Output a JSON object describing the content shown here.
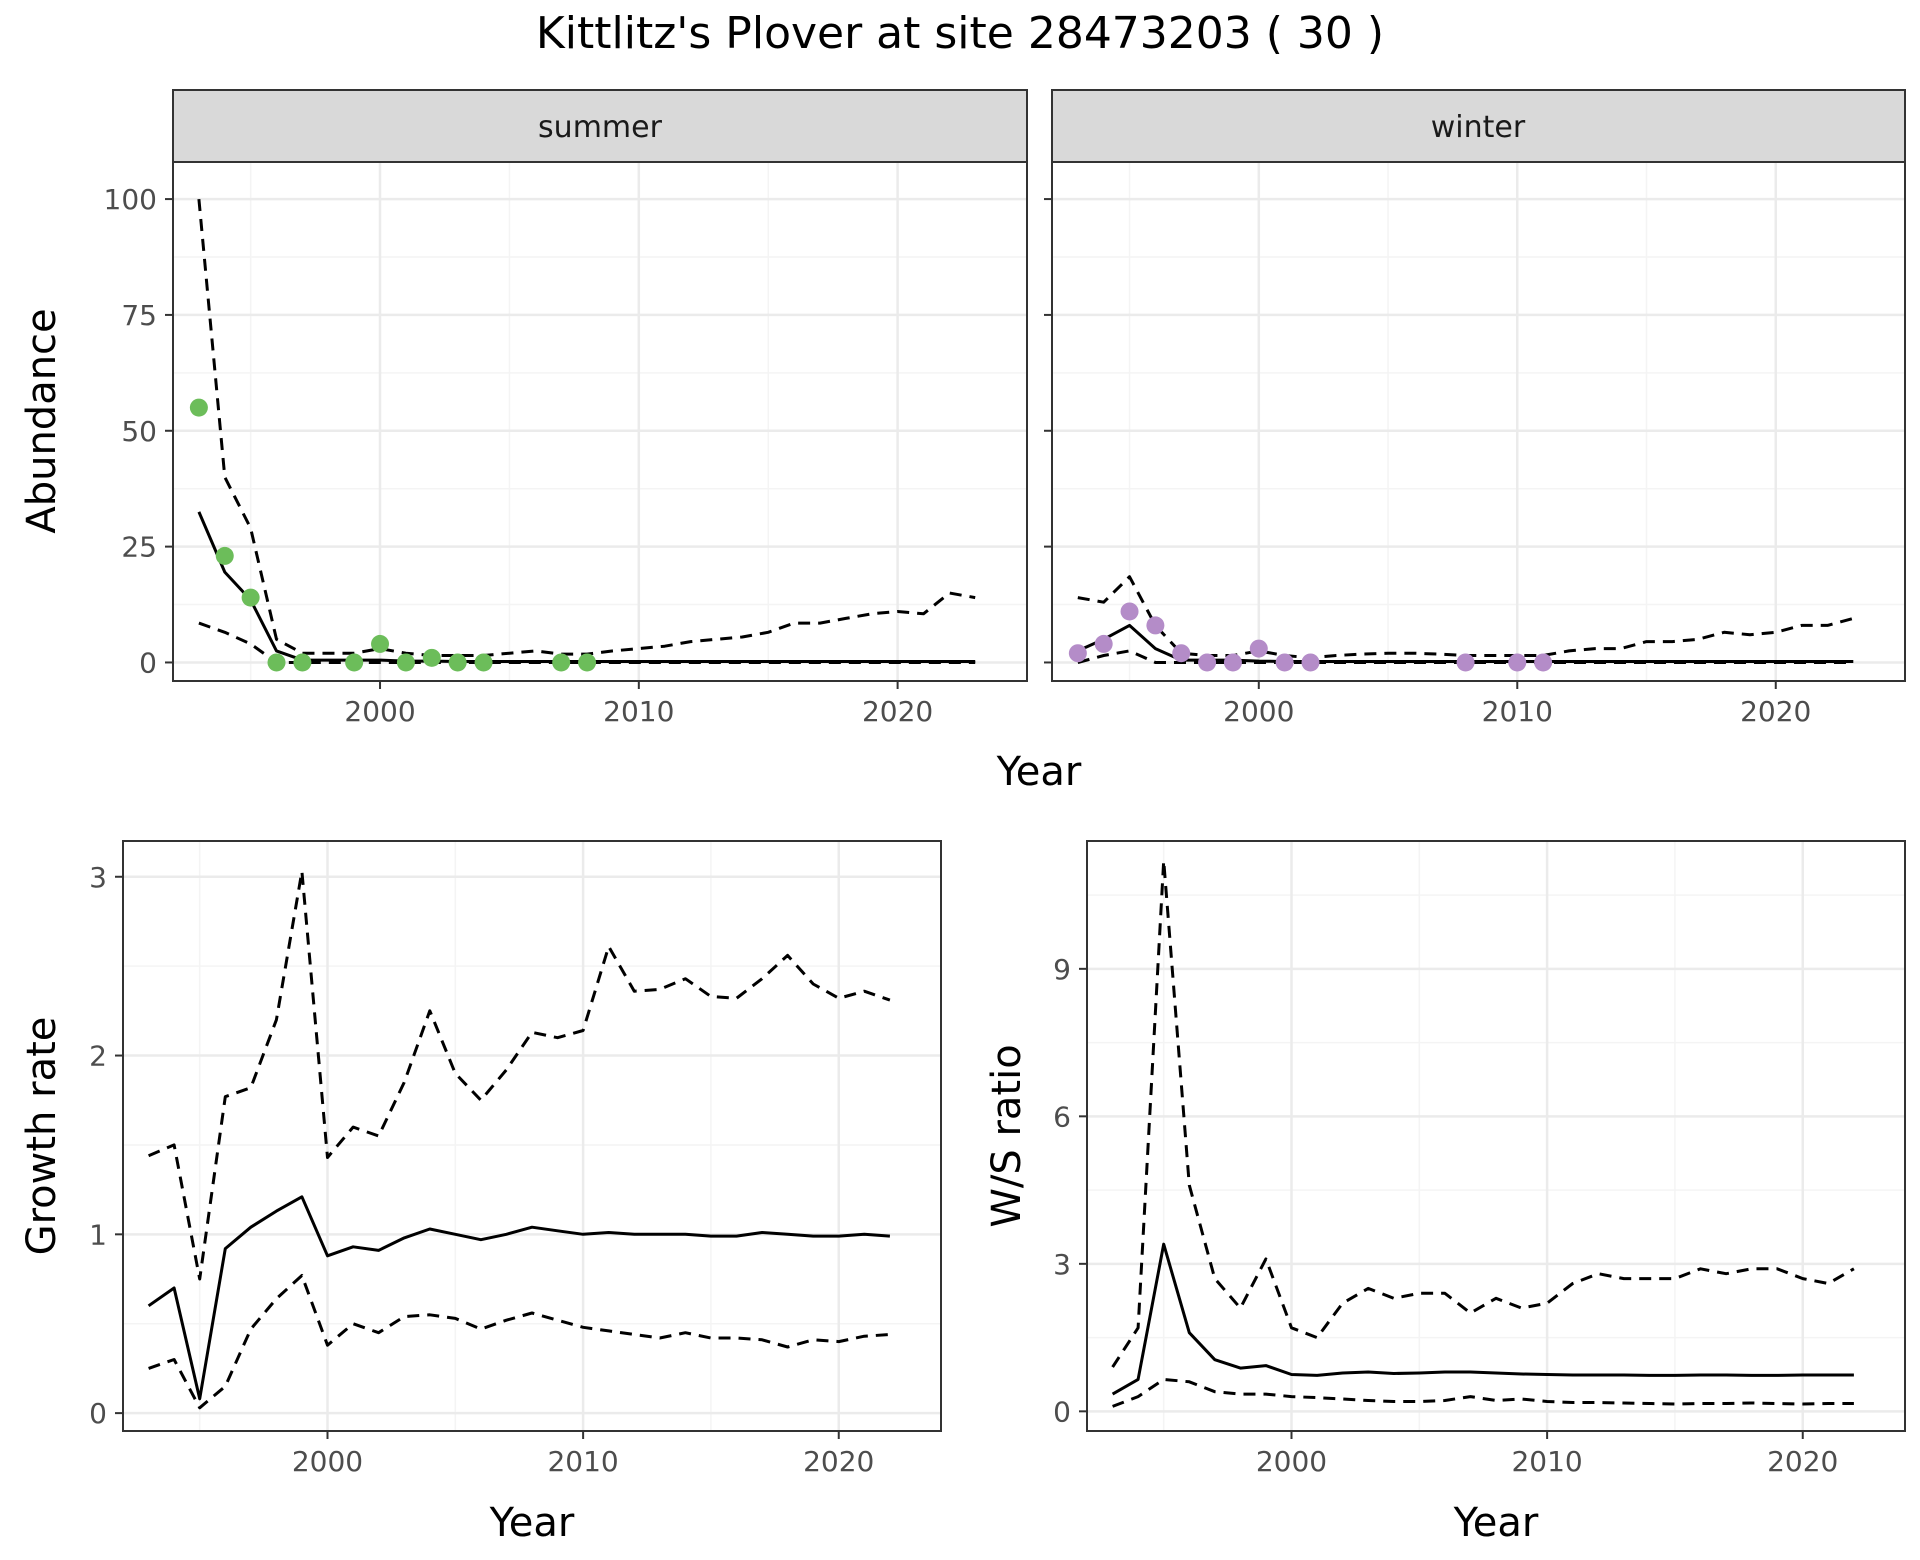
{
  "title": "Kittlitz's Plover at site 28473203 ( 30 )",
  "colors": {
    "summer_points": "#6cbd5a",
    "winter_points": "#b48cc8",
    "line": "#000000",
    "strip_fill": "#d9d9d9",
    "grid_major": "#ebebeb",
    "grid_minor": "#f4f4f4"
  },
  "chart_data": [
    {
      "type": "line",
      "panel": "summer",
      "strip": "summer",
      "xlabel": "",
      "ylabel": "Abundance",
      "xlim": [
        1992,
        2025
      ],
      "ylim": [
        -4,
        108
      ],
      "x_ticks": [
        2000,
        2010,
        2020
      ],
      "y_ticks": [
        0,
        25,
        50,
        75,
        100
      ],
      "grid": true,
      "x": [
        1993,
        1994,
        1995,
        1996,
        1997,
        1998,
        1999,
        2000,
        2001,
        2002,
        2003,
        2004,
        2005,
        2006,
        2007,
        2008,
        2009,
        2010,
        2011,
        2012,
        2013,
        2014,
        2015,
        2016,
        2017,
        2018,
        2019,
        2020,
        2021,
        2022,
        2023
      ],
      "series": [
        {
          "role": "estimate",
          "style": "solid",
          "values": [
            32.5,
            19.5,
            13.5,
            2.5,
            0.5,
            0.5,
            0.5,
            0.5,
            0.3,
            0.3,
            0.2,
            0.2,
            0.2,
            0.2,
            0.2,
            0.2,
            0.2,
            0.2,
            0.2,
            0.2,
            0.2,
            0.2,
            0.2,
            0.2,
            0.2,
            0.2,
            0.2,
            0.2,
            0.2,
            0.2,
            0.2
          ]
        },
        {
          "role": "upper",
          "style": "dashed",
          "values": [
            100,
            40,
            29,
            5,
            2,
            2,
            2,
            3,
            2,
            1.5,
            1.5,
            1.5,
            2,
            2.5,
            1.8,
            1.8,
            2.5,
            3,
            3.5,
            4.5,
            5,
            5.5,
            6.5,
            8.5,
            8.5,
            9.5,
            10.5,
            11,
            10.5,
            15,
            14
          ]
        },
        {
          "role": "lower",
          "style": "dashed",
          "values": [
            8.5,
            6.5,
            4,
            0,
            0,
            0,
            0,
            0,
            0,
            0,
            0,
            0,
            0,
            0,
            0,
            0,
            0,
            0,
            0,
            0,
            0,
            0,
            0,
            0,
            0,
            0,
            0,
            0,
            0,
            0,
            0
          ]
        }
      ],
      "points": {
        "x": [
          1993,
          1994,
          1995,
          1996,
          1997,
          1999,
          2000,
          2001,
          2002,
          2003,
          2004,
          2007,
          2008
        ],
        "y": [
          55,
          23,
          14,
          0,
          0,
          0,
          4,
          0,
          1,
          0,
          0,
          0,
          0
        ]
      }
    },
    {
      "type": "line",
      "panel": "winter",
      "strip": "winter",
      "xlabel": "",
      "ylabel": "",
      "xlim": [
        1992,
        2025
      ],
      "ylim": [
        -4,
        108
      ],
      "x_ticks": [
        2000,
        2010,
        2020
      ],
      "y_ticks": [
        0,
        25,
        50,
        75,
        100
      ],
      "grid": true,
      "x": [
        1993,
        1994,
        1995,
        1996,
        1997,
        1998,
        1999,
        2000,
        2001,
        2002,
        2003,
        2004,
        2005,
        2006,
        2007,
        2008,
        2009,
        2010,
        2011,
        2012,
        2013,
        2014,
        2015,
        2016,
        2017,
        2018,
        2019,
        2020,
        2021,
        2022,
        2023
      ],
      "series": [
        {
          "role": "estimate",
          "style": "solid",
          "values": [
            2.5,
            5,
            8,
            3,
            0.5,
            0.5,
            0.5,
            0.3,
            0.2,
            0.2,
            0.2,
            0.2,
            0.2,
            0.2,
            0.2,
            0.2,
            0.2,
            0.2,
            0.2,
            0.2,
            0.2,
            0.2,
            0.2,
            0.2,
            0.2,
            0.2,
            0.2,
            0.2,
            0.2,
            0.2,
            0.2
          ]
        },
        {
          "role": "upper",
          "style": "dashed",
          "values": [
            14,
            13,
            18.5,
            8,
            2,
            1.5,
            1.5,
            2.5,
            1.5,
            1,
            1.5,
            1.8,
            2,
            2,
            1.8,
            1.5,
            1.5,
            1.5,
            1.5,
            2.5,
            3,
            3,
            4.5,
            4.5,
            5,
            6.5,
            6,
            6.5,
            8,
            8,
            9.5
          ]
        },
        {
          "role": "lower",
          "style": "dashed",
          "values": [
            0,
            1.5,
            2.5,
            0,
            0,
            0,
            0,
            0,
            0,
            0,
            0,
            0,
            0,
            0,
            0,
            0,
            0,
            0,
            0,
            0,
            0,
            0,
            0,
            0,
            0,
            0,
            0,
            0,
            0,
            0,
            0
          ]
        }
      ],
      "points": {
        "x": [
          1993,
          1994,
          1995,
          1996,
          1997,
          1998,
          1999,
          2000,
          2001,
          2002,
          2008,
          2010,
          2011
        ],
        "y": [
          2,
          4,
          11,
          8,
          2,
          0,
          0,
          3,
          0,
          0,
          0,
          0,
          0
        ]
      }
    },
    {
      "type": "line",
      "panel": "growth",
      "xlabel": "Year",
      "ylabel": "Growth rate",
      "xlim": [
        1992,
        2024
      ],
      "ylim": [
        -0.1,
        3.2
      ],
      "x_ticks": [
        2000,
        2010,
        2020
      ],
      "y_ticks": [
        0,
        1,
        2,
        3
      ],
      "grid": true,
      "x": [
        1993,
        1994,
        1995,
        1996,
        1997,
        1998,
        1999,
        2000,
        2001,
        2002,
        2003,
        2004,
        2005,
        2006,
        2007,
        2008,
        2009,
        2010,
        2011,
        2012,
        2013,
        2014,
        2015,
        2016,
        2017,
        2018,
        2019,
        2020,
        2021,
        2022
      ],
      "series": [
        {
          "role": "estimate",
          "style": "solid",
          "values": [
            0.6,
            0.7,
            0.08,
            0.92,
            1.04,
            1.13,
            1.21,
            0.88,
            0.93,
            0.91,
            0.98,
            1.03,
            1.0,
            0.97,
            1.0,
            1.04,
            1.02,
            1.0,
            1.01,
            1.0,
            1.0,
            1.0,
            0.99,
            0.99,
            1.01,
            1.0,
            0.99,
            0.99,
            1.0,
            0.99
          ]
        },
        {
          "role": "upper",
          "style": "dashed",
          "values": [
            1.44,
            1.5,
            0.75,
            1.77,
            1.82,
            2.2,
            3.03,
            1.43,
            1.6,
            1.55,
            1.85,
            2.25,
            1.9,
            1.75,
            1.92,
            2.13,
            2.1,
            2.14,
            2.61,
            2.36,
            2.37,
            2.43,
            2.33,
            2.32,
            2.43,
            2.56,
            2.4,
            2.32,
            2.36,
            2.31
          ]
        },
        {
          "role": "lower",
          "style": "dashed",
          "values": [
            0.25,
            0.3,
            0.03,
            0.15,
            0.47,
            0.64,
            0.77,
            0.38,
            0.5,
            0.45,
            0.54,
            0.55,
            0.53,
            0.47,
            0.52,
            0.56,
            0.52,
            0.48,
            0.46,
            0.44,
            0.42,
            0.45,
            0.42,
            0.42,
            0.41,
            0.37,
            0.41,
            0.4,
            0.43,
            0.44
          ]
        }
      ]
    },
    {
      "type": "line",
      "panel": "ratio",
      "xlabel": "Year",
      "ylabel": "W/S ratio",
      "xlim": [
        1992,
        2024
      ],
      "ylim": [
        -0.4,
        11.6
      ],
      "x_ticks": [
        2000,
        2010,
        2020
      ],
      "y_ticks": [
        0,
        3,
        6,
        9
      ],
      "grid": true,
      "x": [
        1993,
        1994,
        1995,
        1996,
        1997,
        1998,
        1999,
        2000,
        2001,
        2002,
        2003,
        2004,
        2005,
        2006,
        2007,
        2008,
        2009,
        2010,
        2011,
        2012,
        2013,
        2014,
        2015,
        2016,
        2017,
        2018,
        2019,
        2020,
        2021,
        2022
      ],
      "series": [
        {
          "role": "estimate",
          "style": "solid",
          "values": [
            0.35,
            0.65,
            3.4,
            1.6,
            1.05,
            0.88,
            0.93,
            0.75,
            0.73,
            0.78,
            0.8,
            0.77,
            0.78,
            0.8,
            0.8,
            0.78,
            0.76,
            0.75,
            0.74,
            0.74,
            0.74,
            0.73,
            0.73,
            0.74,
            0.74,
            0.73,
            0.73,
            0.74,
            0.74,
            0.74
          ]
        },
        {
          "role": "upper",
          "style": "dashed",
          "values": [
            0.9,
            1.7,
            11.2,
            4.6,
            2.7,
            2.1,
            3.1,
            1.7,
            1.5,
            2.2,
            2.5,
            2.3,
            2.4,
            2.4,
            2.0,
            2.3,
            2.1,
            2.2,
            2.6,
            2.8,
            2.7,
            2.7,
            2.7,
            2.9,
            2.8,
            2.9,
            2.9,
            2.7,
            2.6,
            2.9
          ]
        },
        {
          "role": "lower",
          "style": "dashed",
          "values": [
            0.1,
            0.3,
            0.65,
            0.6,
            0.4,
            0.35,
            0.35,
            0.3,
            0.28,
            0.25,
            0.22,
            0.2,
            0.2,
            0.22,
            0.3,
            0.22,
            0.25,
            0.2,
            0.18,
            0.18,
            0.17,
            0.16,
            0.15,
            0.16,
            0.16,
            0.17,
            0.16,
            0.15,
            0.16,
            0.16
          ]
        }
      ]
    }
  ]
}
